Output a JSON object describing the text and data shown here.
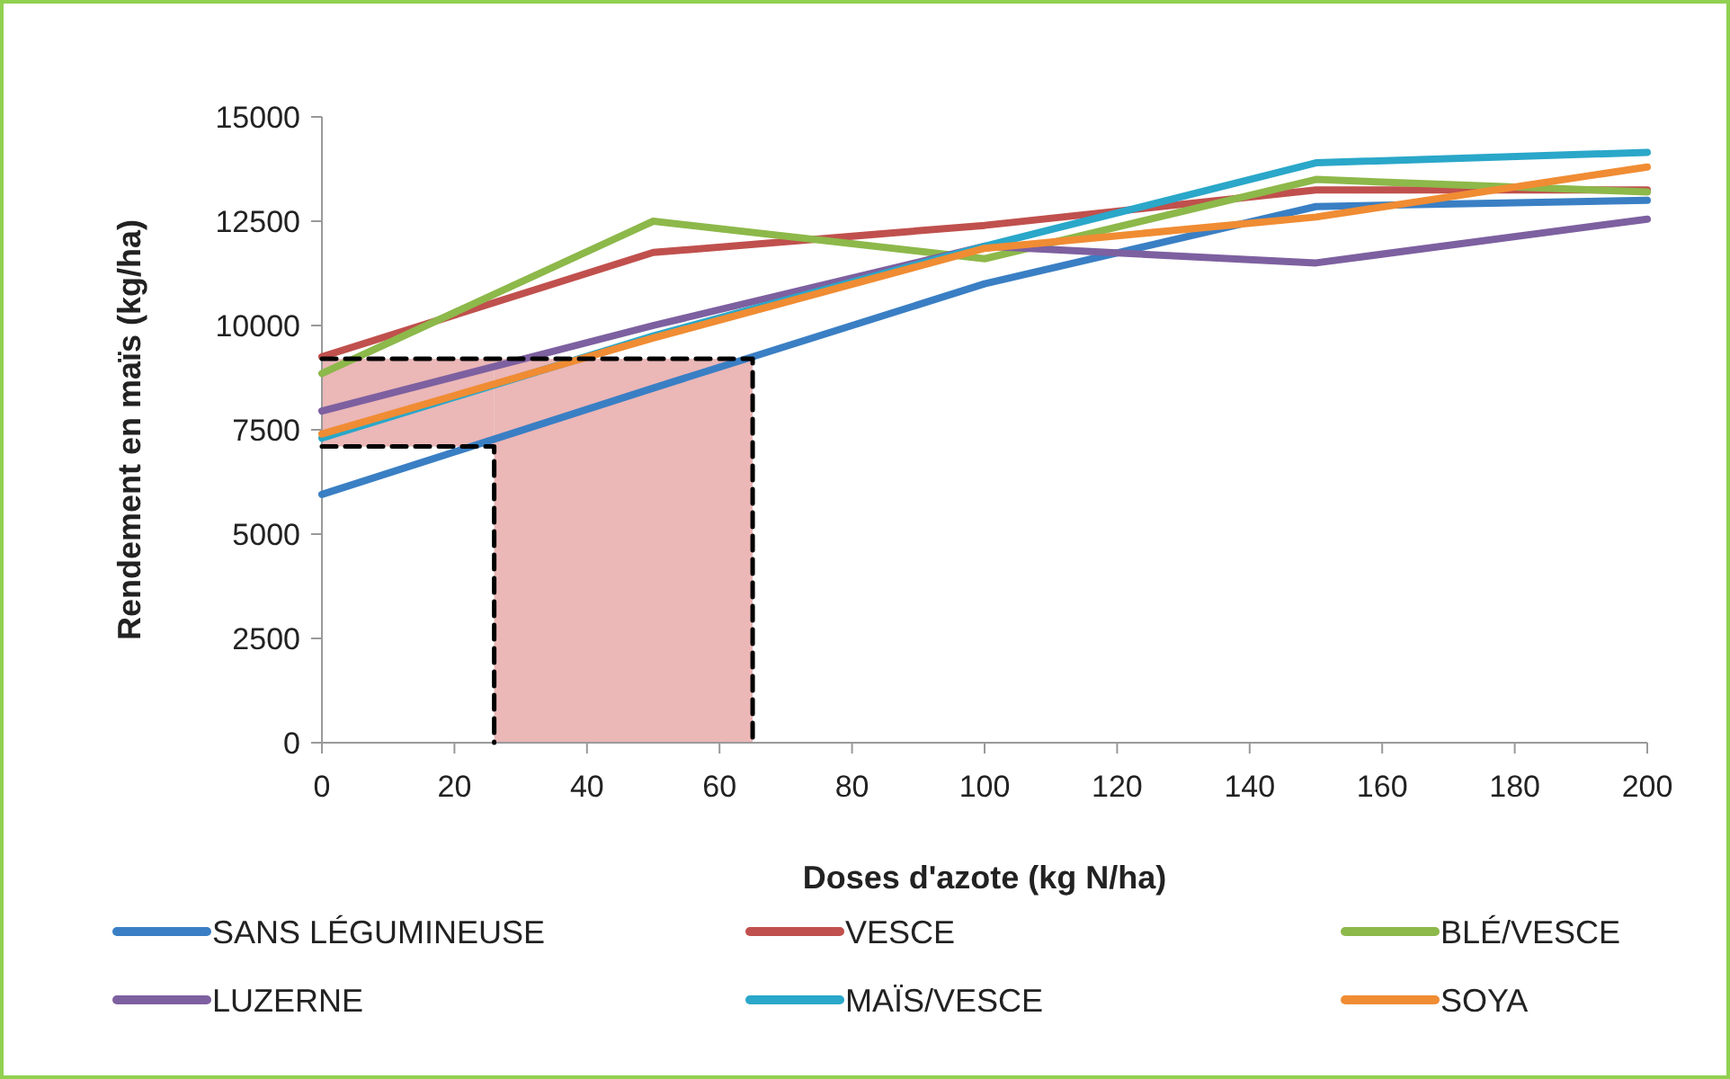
{
  "chart_data": {
    "type": "line",
    "xlabel": "Doses d'azote (kg N/ha)",
    "ylabel": "Rendement en maïs (kg/ha)",
    "x": [
      0,
      50,
      100,
      150,
      200
    ],
    "xlim": [
      0,
      200
    ],
    "xticks": [
      0,
      20,
      40,
      60,
      80,
      100,
      120,
      140,
      160,
      180,
      200
    ],
    "ylim": [
      0,
      15000
    ],
    "yticks": [
      0,
      2500,
      5000,
      7500,
      10000,
      12500,
      15000
    ],
    "grid": false,
    "legend": "bottom",
    "line_style": "solid",
    "marker": "none",
    "series": [
      {
        "name": "SANS LÉGUMINEUSE",
        "color": "#3a7fc4",
        "values": [
          5950,
          8500,
          11000,
          12850,
          13000
        ]
      },
      {
        "name": "VESCE",
        "color": "#c0504d",
        "values": [
          9250,
          11750,
          12400,
          13250,
          13250
        ]
      },
      {
        "name": "BLÉ/VESCE",
        "color": "#8db84a",
        "values": [
          8850,
          12500,
          11600,
          13500,
          13200
        ]
      },
      {
        "name": "LUZERNE",
        "color": "#7d60a0",
        "values": [
          7950,
          10000,
          11900,
          11500,
          12550
        ]
      },
      {
        "name": "MAÏS/VESCE",
        "color": "#2aa7c9",
        "values": [
          7300,
          9750,
          11900,
          13900,
          14150
        ]
      },
      {
        "name": "SOYA",
        "color": "#f08c33",
        "values": [
          7400,
          9700,
          11850,
          12600,
          13800
        ]
      },
      {
        "type": "line",
        "color": "#000000",
        "line_style": "dashed",
        "x": [
          0,
          65,
          65
        ],
        "values": [
          9200,
          9200,
          0
        ]
      },
      {
        "type": "line",
        "color": "#000000",
        "line_style": "dashed",
        "x": [
          0,
          26,
          26
        ],
        "values": [
          7100,
          7100,
          0
        ]
      }
    ],
    "bands": [
      {
        "axis": "y",
        "from": 7100,
        "to": 9200,
        "color": "#e6a5a5"
      },
      {
        "axis": "x",
        "from": 26,
        "to": 65,
        "color": "#e6a5a5"
      }
    ]
  }
}
